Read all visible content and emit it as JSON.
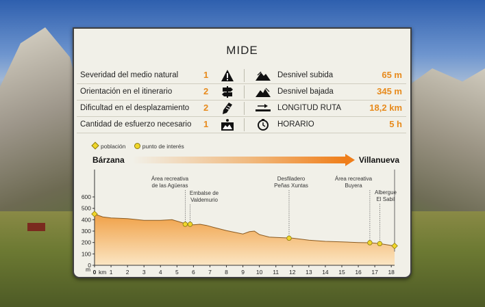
{
  "panel": {
    "title": "MIDE"
  },
  "mide_rows": [
    {
      "label": "Severidad del medio natural",
      "value": "1",
      "icon": "warning-icon"
    },
    {
      "label": "Orientación en el itinerario",
      "value": "2",
      "icon": "signpost-icon"
    },
    {
      "label": "Dificultad en el desplazamiento",
      "value": "2",
      "icon": "boot-icon"
    },
    {
      "label": "Cantidad de esfuerzo necesario",
      "value": "1",
      "icon": "effort-icon"
    }
  ],
  "route_stats": [
    {
      "label": "Desnivel subida",
      "value": "65 m",
      "icon": "ascent-icon"
    },
    {
      "label": "Desnivel bajada",
      "value": "345 m",
      "icon": "descent-icon"
    },
    {
      "label": "LONGITUD RUTA",
      "value": "18,2 km",
      "icon": "distance-icon"
    },
    {
      "label": "HORARIO",
      "value": "5 h",
      "icon": "clock-icon"
    }
  ],
  "legend": {
    "poblacion": "población",
    "punto": "punto de interés"
  },
  "route": {
    "start": "Bárzana",
    "end": "Villanueva"
  },
  "points_of_interest": [
    {
      "lines": [
        "Área recreativa",
        "de las Agüeras"
      ]
    },
    {
      "lines": [
        "Embalse de",
        "Valdemurio"
      ]
    },
    {
      "lines": [
        "Desfiladero",
        "Peñas Xuntas"
      ]
    },
    {
      "lines": [
        "Área recreativa",
        "Buyera"
      ]
    },
    {
      "lines": [
        "Albergue",
        "El Sabil"
      ]
    }
  ],
  "colors": {
    "accent": "#e78a1c",
    "profile_fill": "#f2a54a"
  },
  "chart_data": {
    "type": "area",
    "title": "",
    "xlabel": "km",
    "ylabel": "m",
    "x_ticks": [
      "0",
      "1",
      "2",
      "3",
      "4",
      "5",
      "6",
      "7",
      "8",
      "9",
      "10",
      "11",
      "12",
      "13",
      "14",
      "15",
      "16",
      "17",
      "18"
    ],
    "y_ticks": [
      "0",
      "100",
      "200",
      "300",
      "400",
      "500",
      "600"
    ],
    "xlim": [
      0,
      18.2
    ],
    "ylim": [
      0,
      650
    ],
    "series": [
      {
        "x": [
          0,
          0.5,
          1,
          2,
          3,
          4,
          4.7,
          5.3,
          5.6,
          6,
          6.4,
          6.8,
          7.3,
          8,
          9,
          9.4,
          9.7,
          10,
          10.6,
          11,
          12,
          13,
          14,
          15,
          16,
          16.7,
          17.3,
          18.2
        ],
        "y": [
          450,
          425,
          415,
          410,
          395,
          395,
          400,
          375,
          360,
          355,
          360,
          350,
          330,
          305,
          275,
          295,
          300,
          270,
          248,
          245,
          238,
          220,
          210,
          205,
          200,
          198,
          190,
          170
        ]
      }
    ],
    "markers": [
      {
        "x": 0,
        "y": 450,
        "kind": "población"
      },
      {
        "x": 5.5,
        "y": 360,
        "kind": "punto de interés"
      },
      {
        "x": 5.8,
        "y": 360,
        "kind": "punto de interés"
      },
      {
        "x": 11.8,
        "y": 238,
        "kind": "punto de interés"
      },
      {
        "x": 16.7,
        "y": 198,
        "kind": "punto de interés"
      },
      {
        "x": 17.3,
        "y": 190,
        "kind": "punto de interés"
      },
      {
        "x": 18.2,
        "y": 170,
        "kind": "población"
      }
    ]
  }
}
